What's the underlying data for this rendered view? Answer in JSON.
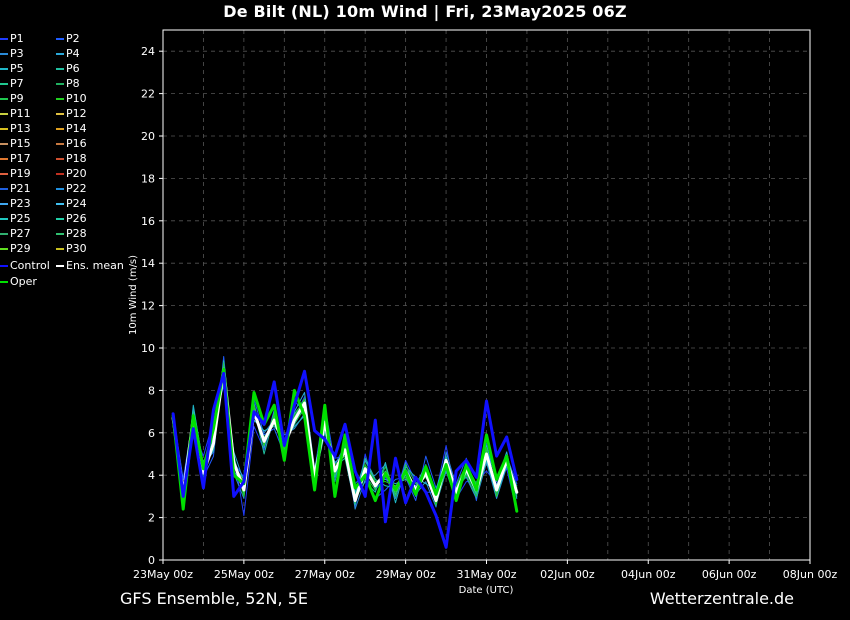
{
  "title": "De Bilt  (NL)  10m Wind | Fri, 23May2025 06Z",
  "footer_left": "GFS Ensemble, 52N, 5E",
  "footer_right": "Wetterzentrale.de",
  "legend": [
    {
      "label": "P1",
      "color": "#1f3cff"
    },
    {
      "label": "P2",
      "color": "#1f5cff"
    },
    {
      "label": "P3",
      "color": "#2a8ad8"
    },
    {
      "label": "P4",
      "color": "#2aa8d8"
    },
    {
      "label": "P5",
      "color": "#20b8c8"
    },
    {
      "label": "P6",
      "color": "#20c0a0"
    },
    {
      "label": "P7",
      "color": "#20c890"
    },
    {
      "label": "P8",
      "color": "#20b060"
    },
    {
      "label": "P9",
      "color": "#20c850"
    },
    {
      "label": "P10",
      "color": "#20d020"
    },
    {
      "label": "P11",
      "color": "#c8d040"
    },
    {
      "label": "P12",
      "color": "#e0c040"
    },
    {
      "label": "P13",
      "color": "#d8c020"
    },
    {
      "label": "P14",
      "color": "#e0a020"
    },
    {
      "label": "P15",
      "color": "#c89060"
    },
    {
      "label": "P16",
      "color": "#c87840"
    },
    {
      "label": "P17",
      "color": "#e07830"
    },
    {
      "label": "P18",
      "color": "#d05030"
    },
    {
      "label": "P19",
      "color": "#e06040"
    },
    {
      "label": "P20",
      "color": "#c03020"
    },
    {
      "label": "P21",
      "color": "#2060e0"
    },
    {
      "label": "P22",
      "color": "#2090e0"
    },
    {
      "label": "P23",
      "color": "#40a8f0"
    },
    {
      "label": "P24",
      "color": "#40c0f0"
    },
    {
      "label": "P25",
      "color": "#20c8c0"
    },
    {
      "label": "P26",
      "color": "#20d0a8"
    },
    {
      "label": "P27",
      "color": "#30b070"
    },
    {
      "label": "P28",
      "color": "#30c070"
    },
    {
      "label": "P29",
      "color": "#60e020"
    },
    {
      "label": "P30",
      "color": "#c8c020"
    },
    {
      "label": "Control",
      "color": "#1010ff"
    },
    {
      "label": "Ens. mean",
      "color": "#ffffff"
    },
    {
      "label": "Oper",
      "color": "#00e000"
    }
  ],
  "chart_data": {
    "type": "line",
    "ylabel": "10m Wind (m/s)",
    "xlabel": "Date (UTC)",
    "ylim": [
      0,
      25
    ],
    "yticks": [
      0,
      2,
      4,
      6,
      8,
      10,
      12,
      14,
      16,
      18,
      20,
      22,
      24
    ],
    "xlim": [
      0,
      384
    ],
    "xticks": [
      {
        "h": 0,
        "label": "23May 00z"
      },
      {
        "h": 48,
        "label": "25May 00z"
      },
      {
        "h": 96,
        "label": "27May 00z"
      },
      {
        "h": 144,
        "label": "29May 00z"
      },
      {
        "h": 192,
        "label": "31May 00z"
      },
      {
        "h": 240,
        "label": "02Jun 00z"
      },
      {
        "h": 288,
        "label": "04Jun 00z"
      },
      {
        "h": 336,
        "label": "06Jun 00z"
      },
      {
        "h": 384,
        "label": "08Jun 00z"
      }
    ],
    "grid": true,
    "time_step_hours": 6,
    "start_hour": 6,
    "series": [
      {
        "name": "Ens. mean",
        "color": "#ffffff",
        "width": 3,
        "values": [
          6.7,
          3.1,
          6.7,
          4.1,
          5.5,
          9.0,
          4.6,
          3.3,
          7.0,
          5.6,
          6.6,
          5.4,
          6.6,
          7.4,
          3.9,
          6.5,
          4.2,
          5.2,
          2.8,
          4.3,
          3.5,
          4.1,
          3.3,
          4.2,
          3.3,
          4.1,
          2.8,
          4.7,
          3.2,
          4.3,
          3.3,
          5.0,
          3.3,
          4.7,
          3.2
        ]
      },
      {
        "name": "Oper",
        "color": "#00e000",
        "width": 3,
        "values": [
          6.8,
          2.4,
          6.8,
          4.3,
          6.2,
          9.0,
          4.0,
          3.6,
          7.9,
          6.4,
          7.3,
          4.7,
          8.0,
          6.8,
          3.3,
          7.3,
          3.0,
          5.9,
          3.4,
          4.0,
          2.8,
          4.1,
          3.3,
          4.2,
          3.1,
          4.4,
          3.1,
          4.5,
          2.8,
          4.5,
          3.3,
          5.9,
          3.8,
          4.9,
          2.3
        ]
      },
      {
        "name": "Control",
        "color": "#1010ff",
        "width": 3,
        "values": [
          6.9,
          3.0,
          6.2,
          3.4,
          7.1,
          8.8,
          3.0,
          3.7,
          7.0,
          6.4,
          8.4,
          5.4,
          7.3,
          8.9,
          6.1,
          5.7,
          4.9,
          6.4,
          4.2,
          3.0,
          6.6,
          1.8,
          4.8,
          2.7,
          3.9,
          3.2,
          2.1,
          0.6,
          4.2,
          4.7,
          3.9,
          7.5,
          4.9,
          5.8,
          3.8
        ]
      },
      {
        "name": "P1",
        "color": "#1f3cff",
        "values": [
          6.6,
          3.4,
          6.1,
          4.9,
          6.6,
          8.2,
          5.0,
          2.1,
          6.3,
          5.2,
          7.1,
          5.6,
          6.7,
          7.7,
          3.9,
          6.1,
          4.8,
          4.9,
          2.5,
          5.0,
          3.3,
          3.9,
          3.0,
          4.7,
          3.7,
          3.2,
          3.2,
          5.4,
          2.9,
          3.7,
          3.7,
          4.2,
          3.6,
          4.3,
          2.3
        ]
      },
      {
        "name": "P2",
        "color": "#1f5cff",
        "values": [
          6.9,
          3.8,
          6.8,
          3.9,
          4.9,
          9.6,
          4.6,
          3.9,
          7.6,
          5.9,
          6.2,
          5.0,
          7.5,
          7.0,
          4.2,
          7.3,
          4.5,
          5.4,
          3.6,
          4.1,
          2.9,
          3.3,
          3.8,
          3.9,
          2.8,
          4.9,
          3.4,
          4.3,
          3.6,
          4.8,
          2.8,
          5.5,
          3.1,
          4.9,
          3.6
        ]
      },
      {
        "name": "P3",
        "color": "#2a8ad8",
        "values": [
          6.4,
          2.8,
          7.2,
          4.5,
          5.1,
          9.2,
          4.1,
          2.9,
          6.9,
          6.0,
          6.6,
          5.9,
          6.2,
          6.9,
          3.5,
          6.7,
          3.7,
          5.7,
          2.4,
          3.8,
          4.0,
          4.5,
          2.9,
          4.6,
          3.1,
          3.7,
          2.5,
          5.1,
          3.5,
          3.9,
          2.9,
          4.6,
          2.9,
          4.4,
          3.4
        ]
      },
      {
        "name": "P4",
        "color": "#2aa8d8",
        "values": [
          6.9,
          3.5,
          6.3,
          3.7,
          5.9,
          8.6,
          5.1,
          3.7,
          7.4,
          5.3,
          7.0,
          4.9,
          7.0,
          7.9,
          4.3,
          6.3,
          4.6,
          5.0,
          3.2,
          4.7,
          3.7,
          3.8,
          3.6,
          3.8,
          3.5,
          4.5,
          2.6,
          4.2,
          2.8,
          4.6,
          3.5,
          5.4,
          3.7,
          5.1,
          2.9
        ]
      },
      {
        "name": "P5",
        "color": "#20b8c8",
        "values": [
          6.5,
          2.7,
          7.3,
          4.4,
          5.2,
          9.4,
          4.2,
          3.5,
          6.6,
          6.1,
          6.3,
          5.7,
          6.3,
          6.8,
          3.6,
          6.9,
          3.9,
          5.6,
          2.9,
          3.7,
          3.2,
          4.6,
          2.7,
          4.4,
          3.9,
          3.6,
          3.3,
          4.9,
          3.0,
          4.2,
          3.1,
          4.7,
          3.0,
          4.5,
          3.5
        ]
      },
      {
        "name": "P6",
        "color": "#20c0a0",
        "values": [
          6.8,
          3.3,
          6.4,
          4.6,
          6.0,
          8.4,
          4.9,
          3.1,
          7.2,
          5.0,
          6.8,
          5.2,
          6.9,
          7.5,
          3.8,
          6.0,
          4.4,
          4.8,
          2.6,
          4.8,
          3.8,
          3.5,
          3.4,
          4.0,
          3.0,
          4.3,
          2.9,
          4.5,
          3.4,
          4.4,
          3.6,
          5.2,
          3.4,
          4.6,
          3.1
        ]
      },
      {
        "name": "P7",
        "color": "#20c890",
        "values": [
          6.6,
          2.9,
          7.0,
          3.8,
          5.6,
          9.1,
          4.4,
          3.8,
          7.0,
          5.7,
          6.5,
          5.5,
          6.4,
          7.2,
          4.0,
          6.6,
          4.1,
          5.3,
          3.1,
          4.4,
          3.4,
          4.2,
          3.1,
          4.3,
          3.4,
          4.0,
          2.7,
          4.8,
          3.1,
          4.1,
          3.2,
          4.9,
          3.5,
          4.8,
          3.0
        ]
      },
      {
        "name": "P8",
        "color": "#20b060",
        "values": [
          6.7,
          3.2,
          6.6,
          4.2,
          5.4,
          8.9,
          4.7,
          3.2,
          7.1,
          5.5,
          6.7,
          5.3,
          6.6,
          7.3,
          3.9,
          6.4,
          4.3,
          5.1,
          2.8,
          4.2,
          3.6,
          4.0,
          3.2,
          4.1,
          3.2,
          4.2,
          2.8,
          4.6,
          3.3,
          4.3,
          3.4,
          5.1,
          3.2,
          4.7,
          3.3
        ]
      },
      {
        "name": "P9",
        "color": "#20c850",
        "values": [
          6.5,
          3.0,
          6.9,
          4.0,
          5.7,
          9.3,
          4.5,
          3.4,
          6.8,
          5.8,
          6.4,
          5.6,
          6.5,
          7.1,
          3.7,
          6.8,
          4.0,
          5.5,
          2.7,
          4.0,
          3.3,
          4.4,
          3.0,
          4.5,
          3.6,
          3.9,
          3.0,
          4.7,
          3.2,
          4.0,
          3.0,
          4.8,
          3.4,
          4.6,
          3.2
        ]
      },
      {
        "name": "P10",
        "color": "#20d020",
        "values": [
          6.8,
          3.4,
          6.5,
          4.3,
          5.3,
          8.7,
          4.8,
          3.0,
          7.3,
          5.4,
          6.9,
          5.1,
          6.8,
          7.6,
          4.1,
          6.2,
          4.5,
          4.9,
          2.9,
          4.5,
          3.7,
          3.7,
          3.5,
          3.9,
          3.1,
          4.4,
          2.6,
          4.4,
          3.5,
          4.5,
          3.6,
          5.3,
          3.0,
          4.8,
          3.4
        ]
      },
      {
        "name": "P11",
        "color": "#c8d040",
        "values": [
          6.6,
          2.9,
          6.8,
          4.1,
          5.6,
          9.0,
          4.6,
          3.6,
          6.9,
          5.6,
          6.6,
          5.4,
          6.6,
          7.4,
          3.9,
          6.5,
          4.2,
          5.2,
          2.8,
          4.3,
          3.5,
          4.1,
          3.3,
          4.2,
          3.3,
          4.1,
          2.8,
          4.7,
          3.2,
          4.3,
          3.3,
          5.0,
          3.3,
          4.7,
          3.2
        ]
      },
      {
        "name": "P12",
        "color": "#e0c040",
        "values": [
          6.7,
          3.1,
          6.7,
          4.1,
          5.5,
          9.0,
          4.6,
          3.3,
          7.0,
          5.6,
          6.6,
          5.4,
          6.6,
          7.4,
          3.9,
          6.5,
          4.2,
          5.2,
          2.8,
          4.3,
          3.5,
          4.1,
          3.3,
          4.2,
          3.3,
          4.1,
          2.8,
          4.7,
          3.2,
          4.3,
          3.3,
          5.0,
          3.3,
          4.7,
          3.2
        ]
      }
    ]
  }
}
